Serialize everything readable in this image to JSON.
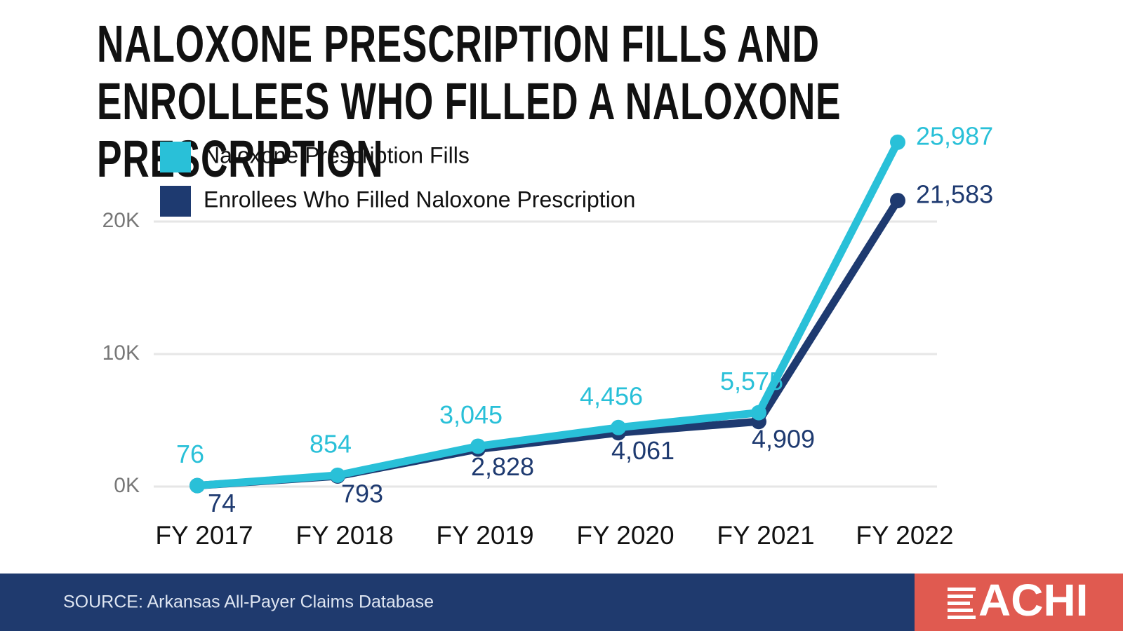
{
  "chart_data": {
    "type": "line",
    "title": "NALOXONE PRESCRIPTION FILLS AND ENROLLEES WHO FILLED A NALOXONE PRESCRIPTION",
    "categories": [
      "FY 2017",
      "FY 2018",
      "FY 2019",
      "FY 2020",
      "FY 2021",
      "FY 2022"
    ],
    "series": [
      {
        "name": "Naloxone Prescription Fills",
        "color": "#29c0d8",
        "values": [
          76,
          854,
          3045,
          4456,
          5575,
          25987
        ],
        "value_labels": [
          "76",
          "854",
          "3,045",
          "4,456",
          "5,575",
          "25,987"
        ]
      },
      {
        "name": "Enrollees Who Filled Naloxone Prescription",
        "color": "#1e3a70",
        "values": [
          74,
          793,
          2828,
          4061,
          4909,
          21583
        ],
        "value_labels": [
          "74",
          "793",
          "2,828",
          "4,061",
          "4,909",
          "21,583"
        ]
      }
    ],
    "ylim": [
      0,
      20000
    ],
    "yticks": [
      {
        "value": 0,
        "label": "0K"
      },
      {
        "value": 10000,
        "label": "10K"
      },
      {
        "value": 20000,
        "label": "20K"
      }
    ],
    "grid": true,
    "source": "SOURCE: Arkansas All-Payer Claims Database",
    "logo": "ACHI"
  }
}
